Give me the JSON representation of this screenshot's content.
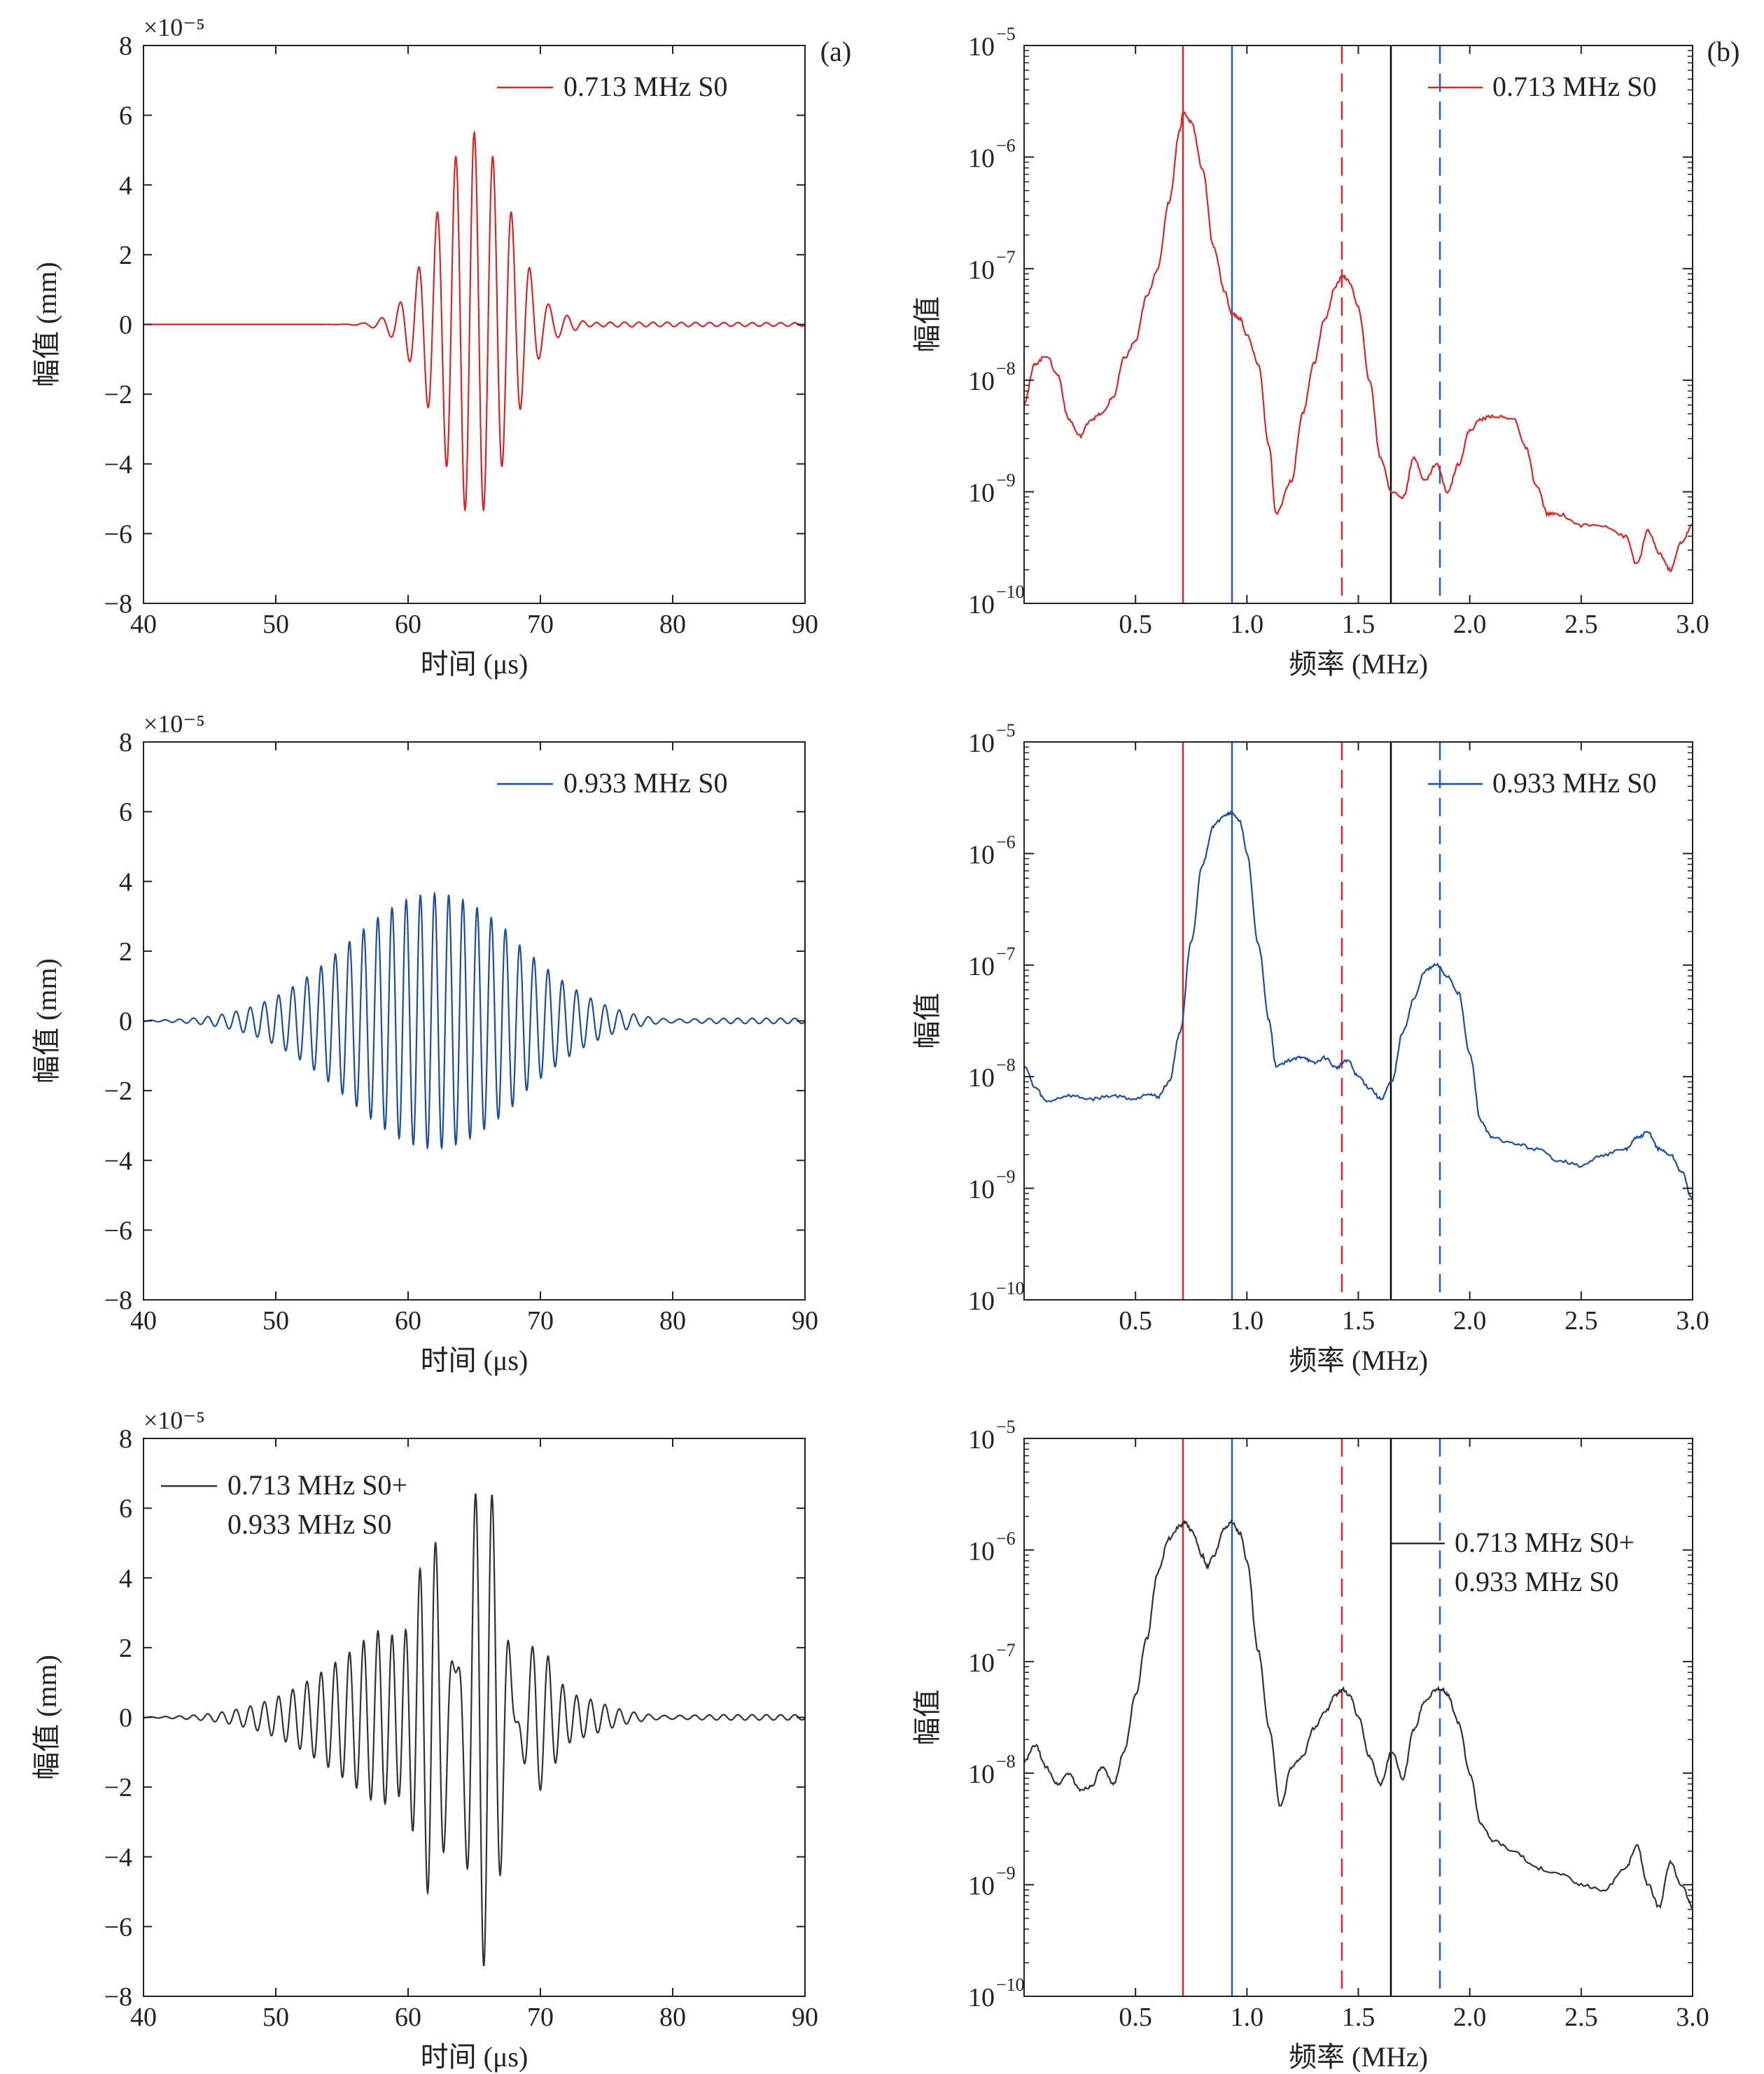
{
  "colors": {
    "red": "#d62728",
    "blue": "#1f4e9c",
    "black": "#333333",
    "marker_red": "#d62728",
    "marker_blue": "#1f5bd6",
    "marker_black": "#000000"
  },
  "time_axis": {
    "xlabel": "时间 (μs)",
    "ylabel": "幅值 (mm)",
    "exponent_label": "×10⁻⁵",
    "xlim": [
      40,
      90
    ],
    "ylim": [
      -8,
      8
    ],
    "xticks": [
      40,
      50,
      60,
      70,
      80,
      90
    ],
    "yticks": [
      8,
      6,
      4,
      2,
      0,
      -2,
      -4,
      -6,
      -8
    ]
  },
  "freq_axis": {
    "xlabel": "频率 (MHz)",
    "ylabel": "幅值",
    "xlim": [
      0,
      3.0
    ],
    "yrange_log10": [
      -10,
      -5
    ],
    "xticks": [
      "0.5",
      "1.0",
      "1.5",
      "2.0",
      "2.5",
      "3.0"
    ],
    "yticks": [
      {
        "base": "10",
        "exp": "−5"
      },
      {
        "base": "10",
        "exp": "−6"
      },
      {
        "base": "10",
        "exp": "−7"
      },
      {
        "base": "10",
        "exp": "−8"
      },
      {
        "base": "10",
        "exp": "−9"
      },
      {
        "base": "10",
        "exp": "−10"
      }
    ]
  },
  "panel_labels": {
    "a": "(a)",
    "b": "(b)"
  },
  "chart_data": [
    {
      "type": "line",
      "id": "time-1",
      "column": "a",
      "row": 1,
      "legend": "0.713 MHz S0",
      "legend_lines": [
        "0.713 MHz S0"
      ],
      "color": "red",
      "ylabel": "幅值 (mm)",
      "xlabel": "时间 (μs)",
      "scale": "×10⁻⁵",
      "xlim": [
        40,
        90
      ],
      "ylim": [
        -8,
        8
      ],
      "series": [
        {
          "name": "0.713 MHz S0",
          "signal": {
            "components": [
              {
                "freq_MHz": 0.713,
                "center_us": 65.0,
                "sigma_us": 2.7,
                "amplitude": 5.5
              }
            ],
            "tail_end_us": 90,
            "tail_amplitude": 0.08
          }
        }
      ]
    },
    {
      "type": "line",
      "id": "time-2",
      "column": "a",
      "row": 2,
      "legend": "0.933 MHz S0",
      "legend_lines": [
        "0.933 MHz S0"
      ],
      "color": "blue",
      "ylabel": "幅值 (mm)",
      "xlabel": "时间 (μs)",
      "scale": "×10⁻⁵",
      "xlim": [
        40,
        90
      ],
      "ylim": [
        -8,
        8
      ],
      "series": [
        {
          "name": "0.933 MHz S0",
          "signal": {
            "components": [
              {
                "freq_MHz": 0.933,
                "center_us": 62.0,
                "sigma_us": 6.6,
                "amplitude": 3.65
              }
            ],
            "tail_end_us": 90,
            "tail_amplitude": 0.12
          }
        }
      ]
    },
    {
      "type": "line",
      "id": "time-3",
      "column": "a",
      "row": 3,
      "legend": "0.713 MHz S0+0.933 MHz S0",
      "legend_lines": [
        "0.713 MHz S0+",
        "0.933 MHz S0"
      ],
      "color": "black",
      "ylabel": "幅值 (mm)",
      "xlabel": "时间 (μs)",
      "scale": "×10⁻⁵",
      "xlim": [
        40,
        90
      ],
      "ylim": [
        -8,
        8
      ],
      "series": [
        {
          "name": "0.713 MHz S0+0.933 MHz S0",
          "signal": {
            "components": [
              {
                "freq_MHz": 0.713,
                "center_us": 65.0,
                "sigma_us": 2.7,
                "amplitude": 4.8
              },
              {
                "freq_MHz": 0.933,
                "center_us": 62.0,
                "sigma_us": 6.6,
                "amplitude": 3.0
              }
            ],
            "tail_end_us": 90,
            "tail_amplitude": 0.12
          }
        }
      ]
    },
    {
      "type": "line",
      "id": "freq-1",
      "column": "b",
      "row": 1,
      "legend": "0.713 MHz S0",
      "legend_lines": [
        "0.713 MHz S0"
      ],
      "color": "red",
      "ylabel": "幅值",
      "xlabel": "频率 (MHz)",
      "yscale": "log",
      "xlim": [
        0,
        3.0
      ],
      "ylim": [
        1e-10,
        1e-05
      ],
      "markers": [
        {
          "x": 0.713,
          "color": "red",
          "dash": false
        },
        {
          "x": 0.933,
          "color": "blue",
          "dash": false
        },
        {
          "x": 1.426,
          "color": "red",
          "dash": true
        },
        {
          "x": 1.646,
          "color": "black",
          "dash": false
        },
        {
          "x": 1.866,
          "color": "blue",
          "dash": true
        }
      ],
      "series": [
        {
          "name": "0.713 MHz S0",
          "x": [
            0.0,
            0.05,
            0.1,
            0.15,
            0.2,
            0.25,
            0.3,
            0.35,
            0.4,
            0.45,
            0.5,
            0.55,
            0.6,
            0.65,
            0.7,
            0.713,
            0.75,
            0.8,
            0.85,
            0.9,
            0.93,
            0.97,
            1.0,
            1.05,
            1.1,
            1.13,
            1.2,
            1.25,
            1.3,
            1.35,
            1.4,
            1.43,
            1.46,
            1.5,
            1.55,
            1.6,
            1.65,
            1.7,
            1.75,
            1.8,
            1.85,
            1.9,
            1.95,
            2.0,
            2.05,
            2.1,
            2.2,
            2.25,
            2.3,
            2.35,
            2.4,
            2.5,
            2.6,
            2.7,
            2.75,
            2.8,
            2.85,
            2.9,
            2.95,
            3.0
          ],
          "y": [
            -8.2,
            -7.85,
            -7.78,
            -7.95,
            -8.35,
            -8.5,
            -8.35,
            -8.3,
            -8.15,
            -7.8,
            -7.65,
            -7.25,
            -7.0,
            -6.4,
            -5.75,
            -5.6,
            -5.68,
            -6.1,
            -6.8,
            -7.2,
            -7.4,
            -7.45,
            -7.6,
            -7.85,
            -8.6,
            -9.2,
            -8.9,
            -8.3,
            -7.85,
            -7.45,
            -7.15,
            -7.06,
            -7.12,
            -7.35,
            -8.0,
            -8.7,
            -9.0,
            -9.05,
            -8.7,
            -8.9,
            -8.75,
            -9.0,
            -8.75,
            -8.45,
            -8.35,
            -8.32,
            -8.35,
            -8.6,
            -8.95,
            -9.2,
            -9.2,
            -9.3,
            -9.3,
            -9.4,
            -9.65,
            -9.35,
            -9.55,
            -9.7,
            -9.45,
            -9.3
          ]
        }
      ]
    },
    {
      "type": "line",
      "id": "freq-2",
      "column": "b",
      "row": 2,
      "legend": "0.933 MHz S0",
      "legend_lines": [
        "0.933 MHz S0"
      ],
      "color": "blue",
      "ylabel": "幅值",
      "xlabel": "频率 (MHz)",
      "yscale": "log",
      "xlim": [
        0,
        3.0
      ],
      "ylim": [
        1e-10,
        1e-05
      ],
      "markers": [
        {
          "x": 0.713,
          "color": "red",
          "dash": false
        },
        {
          "x": 0.933,
          "color": "blue",
          "dash": false
        },
        {
          "x": 1.426,
          "color": "red",
          "dash": true
        },
        {
          "x": 1.646,
          "color": "black",
          "dash": false
        },
        {
          "x": 1.866,
          "color": "blue",
          "dash": true
        }
      ],
      "series": [
        {
          "name": "0.933 MHz S0",
          "x": [
            0.0,
            0.05,
            0.1,
            0.2,
            0.3,
            0.4,
            0.5,
            0.55,
            0.6,
            0.65,
            0.7,
            0.75,
            0.8,
            0.85,
            0.9,
            0.933,
            0.97,
            1.0,
            1.05,
            1.1,
            1.13,
            1.2,
            1.25,
            1.3,
            1.35,
            1.4,
            1.45,
            1.5,
            1.55,
            1.6,
            1.65,
            1.7,
            1.75,
            1.8,
            1.85,
            1.9,
            1.95,
            2.0,
            2.05,
            2.1,
            2.2,
            2.3,
            2.4,
            2.5,
            2.6,
            2.7,
            2.75,
            2.8,
            2.85,
            2.9,
            2.95,
            3.0
          ],
          "y": [
            -7.9,
            -8.1,
            -8.22,
            -8.17,
            -8.2,
            -8.17,
            -8.2,
            -8.15,
            -8.18,
            -8.05,
            -7.6,
            -6.8,
            -6.1,
            -5.75,
            -5.65,
            -5.63,
            -5.72,
            -6.0,
            -6.8,
            -7.5,
            -7.9,
            -7.85,
            -7.82,
            -7.88,
            -7.83,
            -7.92,
            -7.85,
            -8.0,
            -8.1,
            -8.2,
            -8.05,
            -7.6,
            -7.3,
            -7.05,
            -7.0,
            -7.1,
            -7.25,
            -7.8,
            -8.4,
            -8.55,
            -8.6,
            -8.65,
            -8.75,
            -8.8,
            -8.7,
            -8.65,
            -8.55,
            -8.5,
            -8.65,
            -8.7,
            -8.85,
            -9.1
          ]
        }
      ]
    },
    {
      "type": "line",
      "id": "freq-3",
      "column": "b",
      "row": 3,
      "legend": "0.713 MHz S0+0.933 MHz S0",
      "legend_lines": [
        "0.713 MHz S0+",
        "0.933 MHz S0"
      ],
      "color": "black",
      "ylabel": "幅值",
      "xlabel": "频率 (MHz)",
      "yscale": "log",
      "xlim": [
        0,
        3.0
      ],
      "ylim": [
        1e-10,
        1e-05
      ],
      "markers": [
        {
          "x": 0.713,
          "color": "red",
          "dash": false
        },
        {
          "x": 0.933,
          "color": "blue",
          "dash": false
        },
        {
          "x": 1.426,
          "color": "red",
          "dash": true
        },
        {
          "x": 1.646,
          "color": "black",
          "dash": false
        },
        {
          "x": 1.866,
          "color": "blue",
          "dash": true
        }
      ],
      "series": [
        {
          "name": "0.713 MHz S0+0.933 MHz S0",
          "x": [
            0.0,
            0.05,
            0.1,
            0.15,
            0.2,
            0.25,
            0.3,
            0.35,
            0.4,
            0.45,
            0.5,
            0.55,
            0.6,
            0.65,
            0.7,
            0.72,
            0.75,
            0.8,
            0.82,
            0.85,
            0.9,
            0.93,
            0.97,
            1.0,
            1.05,
            1.1,
            1.15,
            1.2,
            1.25,
            1.3,
            1.35,
            1.4,
            1.43,
            1.46,
            1.5,
            1.55,
            1.6,
            1.65,
            1.7,
            1.75,
            1.8,
            1.85,
            1.88,
            1.9,
            1.95,
            2.0,
            2.05,
            2.1,
            2.2,
            2.3,
            2.4,
            2.5,
            2.6,
            2.7,
            2.75,
            2.8,
            2.85,
            2.9,
            2.95,
            3.0
          ],
          "y": [
            -7.9,
            -7.75,
            -7.95,
            -8.1,
            -8.0,
            -8.15,
            -8.12,
            -7.95,
            -8.1,
            -7.8,
            -7.3,
            -6.8,
            -6.2,
            -5.9,
            -5.78,
            -5.75,
            -5.82,
            -6.05,
            -6.15,
            -6.05,
            -5.8,
            -5.75,
            -5.85,
            -6.1,
            -6.9,
            -7.6,
            -8.3,
            -7.95,
            -7.85,
            -7.6,
            -7.45,
            -7.3,
            -7.25,
            -7.3,
            -7.5,
            -7.85,
            -8.1,
            -7.8,
            -8.05,
            -7.6,
            -7.35,
            -7.25,
            -7.25,
            -7.3,
            -7.55,
            -8.0,
            -8.45,
            -8.6,
            -8.7,
            -8.85,
            -8.9,
            -9.0,
            -9.05,
            -8.85,
            -8.65,
            -9.0,
            -9.2,
            -8.8,
            -9.0,
            -9.2
          ]
        }
      ]
    }
  ]
}
